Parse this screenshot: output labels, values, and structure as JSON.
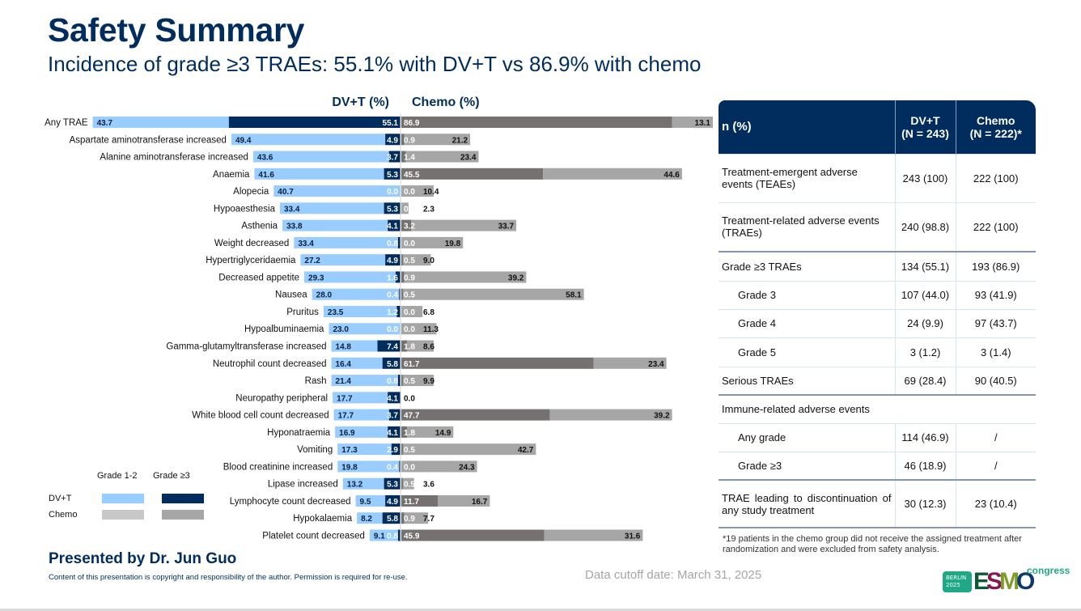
{
  "header": {
    "title": "Safety Summary",
    "subtitle": "Incidence of grade ≥3 TRAEs: 55.1% with DV+T vs 86.9% with chemo"
  },
  "colors": {
    "navy": "#002d5e",
    "dvt_grade12": "#99ccff",
    "dvt_grade3plus": "#002d5e",
    "chemo_grade12": "#a6a6a6",
    "chemo_grade3plus": "#767171",
    "legend_chemo_grade12": "#c8c8c8",
    "legend_chemo_grade3plus": "#a6a6a6"
  },
  "chart_data": {
    "type": "bar",
    "orientation": "horizontal-butterfly",
    "left_header": "DV+T (%)",
    "right_header": "Chemo (%)",
    "categories": [
      "Any TRAE",
      "Aspartate aminotransferase increased",
      "Alanine aminotransferase increased",
      "Anaemia",
      "Alopecia",
      "Hypoaesthesia",
      "Asthenia",
      "Weight decreased",
      "Hypertriglyceridaemia",
      "Decreased appetite",
      "Nausea",
      "Pruritus",
      "Hypoalbuminaemia",
      "Gamma-glutamyltransferase increased",
      "Neutrophil count decreased",
      "Rash",
      "Neuropathy peripheral",
      "White blood cell count decreased",
      "Hyponatraemia",
      "Vomiting",
      "Blood creatinine increased",
      "Lipase increased",
      "Lymphocyte count decreased",
      "Hypokalaemia",
      "Platelet count decreased"
    ],
    "series": [
      {
        "name": "DV+T Grade 1-2",
        "side": "left",
        "values": [
          43.7,
          49.4,
          43.6,
          41.6,
          40.7,
          33.4,
          33.8,
          33.4,
          27.2,
          29.3,
          28.0,
          23.5,
          23.0,
          14.8,
          16.4,
          21.4,
          17.7,
          17.7,
          16.9,
          17.3,
          19.8,
          13.2,
          9.5,
          8.2,
          9.1
        ]
      },
      {
        "name": "DV+T Grade ≥3",
        "side": "left",
        "values": [
          55.1,
          4.9,
          3.7,
          5.3,
          0.0,
          5.3,
          4.1,
          0.8,
          4.9,
          1.6,
          0.4,
          1.2,
          0.0,
          7.4,
          5.8,
          0.8,
          4.1,
          3.7,
          4.1,
          2.9,
          0.4,
          5.3,
          4.9,
          5.8,
          0.8
        ]
      },
      {
        "name": "Chemo Grade ≥3",
        "side": "right",
        "values": [
          86.9,
          0.9,
          1.4,
          45.5,
          0.0,
          0,
          3.2,
          0.0,
          0.5,
          0.9,
          0.5,
          0.0,
          0.0,
          1.8,
          61.7,
          0.5,
          null,
          47.7,
          1.8,
          0.5,
          0.0,
          0.5,
          11.7,
          0.9,
          45.9
        ]
      },
      {
        "name": "Chemo Grade 1-2",
        "side": "right",
        "values": [
          13.1,
          21.2,
          23.4,
          44.6,
          10.4,
          2.3,
          33.7,
          19.8,
          9.0,
          39.2,
          58.1,
          6.8,
          11.3,
          8.6,
          23.4,
          9.9,
          0.0,
          39.2,
          14.9,
          42.7,
          24.3,
          3.6,
          16.7,
          7.7,
          31.6
        ]
      }
    ],
    "chemo_grade3_labels": [
      "86.9",
      "0.9",
      "1.4",
      "45.5",
      "0.0",
      "0",
      "3.2",
      "0.0",
      "0.5",
      "0.9",
      "0.5",
      "0.0",
      "0.0",
      "1.8",
      "61.7",
      "0.5",
      "",
      "47.7",
      "1.8",
      "0.5",
      "0.0",
      "0.5",
      "11.7",
      "0.9",
      "45.9"
    ],
    "chemo_grade12_labels": [
      "13.1",
      "21.2",
      "23.4",
      "44.6",
      "10.4",
      "2.3",
      "33.7",
      "19.8",
      "9.0",
      "39.2",
      "58.1",
      "6.8",
      "11.3",
      "8.6",
      "23.4",
      "9.9",
      "0.0",
      "39.2",
      "14.9",
      "42.7",
      "24.3",
      "3.6",
      "16.7",
      "7.7",
      "31.6"
    ],
    "xlim_each_side": [
      0,
      100
    ],
    "grid": false,
    "legend": {
      "placement": "bottom-left",
      "column_headers": [
        "Grade 1-2",
        "Grade ≥3"
      ],
      "rows": [
        "DV+T",
        "Chemo"
      ]
    }
  },
  "table": {
    "headers": [
      "n (%)",
      "DV+T\n(N = 243)",
      "Chemo\n(N = 222)*"
    ],
    "header_dvt_line1": "DV+T",
    "header_dvt_line2": "(N = 243)",
    "header_chemo_line1": "Chemo",
    "header_chemo_line2": "(N = 222)*",
    "rows": [
      {
        "label": "Treatment-emergent adverse events (TEAEs)",
        "dvt": "243 (100)",
        "chemo": "222 (100)"
      },
      {
        "label": "Treatment-related adverse events (TRAEs)",
        "dvt": "240 (98.8)",
        "chemo": "222 (100)"
      },
      {
        "label": "Grade ≥3 TRAEs",
        "dvt": "134 (55.1)",
        "chemo": "193 (86.9)"
      },
      {
        "label": "Grade 3",
        "dvt": "107 (44.0)",
        "chemo": "93 (41.9)"
      },
      {
        "label": "Grade 4",
        "dvt": "24 (9.9)",
        "chemo": "97 (43.7)"
      },
      {
        "label": "Grade 5",
        "dvt": "3 (1.2)",
        "chemo": "3 (1.4)"
      },
      {
        "label": "Serious TRAEs",
        "dvt": "69 (28.4)",
        "chemo": "90 (40.5)"
      },
      {
        "label": "Immune-related adverse events",
        "dvt": "",
        "chemo": ""
      },
      {
        "label": "Any grade",
        "dvt": "114 (46.9)",
        "chemo": "/"
      },
      {
        "label": "Grade ≥3",
        "dvt": "46 (18.9)",
        "chemo": "/"
      },
      {
        "label": "TRAE leading to discontinuation of any study treatment",
        "dvt": "30 (12.3)",
        "chemo": "23 (10.4)"
      }
    ],
    "footnote": "*19 patients in the chemo group did not receive the assigned treatment after randomization and were excluded from safety analysis."
  },
  "footer": {
    "presenter": "Presented by Dr. Jun Guo",
    "copyright": "Content of this presentation is copyright and responsibility of the author. Permission is required for re-use.",
    "cutoff": "Data cutoff date: March 31, 2025",
    "logo": {
      "city": "BERLIN",
      "year": "2025",
      "brand": "ESMO",
      "suffix": "congress"
    }
  }
}
